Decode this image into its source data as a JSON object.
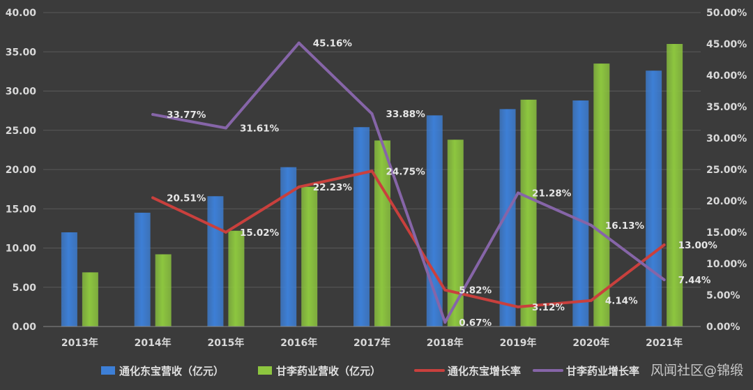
{
  "chart_data": {
    "type": "bar",
    "categories": [
      "2013年",
      "2014年",
      "2015年",
      "2016年",
      "2017年",
      "2018年",
      "2019年",
      "2020年",
      "2021年"
    ],
    "y_left": {
      "min": 0,
      "max": 40,
      "ticks": [
        "0.00",
        "5.00",
        "10.00",
        "15.00",
        "20.00",
        "25.00",
        "30.00",
        "35.00",
        "40.00"
      ]
    },
    "y_right": {
      "min": 0,
      "max": 50,
      "ticks": [
        "0.00%",
        "5.00%",
        "10.00%",
        "15.00%",
        "20.00%",
        "25.00%",
        "30.00%",
        "35.00%",
        "40.00%",
        "45.00%",
        "50.00%"
      ]
    },
    "grid": true,
    "legend_position": "bottom",
    "bar_series": [
      {
        "name": "通化东宝营收（亿元）",
        "color": "#3d7fd6",
        "values": [
          12.0,
          14.5,
          16.6,
          20.3,
          25.4,
          26.9,
          27.7,
          28.8,
          32.6
        ]
      },
      {
        "name": "甘李药业营收（亿元）",
        "color": "#8dc63f",
        "values": [
          6.9,
          9.2,
          12.2,
          17.8,
          23.7,
          23.8,
          28.9,
          33.5,
          36.0
        ]
      }
    ],
    "line_series": [
      {
        "name": "通化东宝增长率",
        "color": "#c9403d",
        "values": [
          null,
          20.51,
          15.02,
          22.23,
          24.75,
          5.82,
          3.12,
          4.14,
          13.0
        ],
        "labels": [
          null,
          "20.51%",
          "15.02%",
          "22.23%",
          "24.75%",
          "5.82%",
          "3.12%",
          "4.14%",
          "13.00%"
        ]
      },
      {
        "name": "甘李药业增长率",
        "color": "#8665a8",
        "values": [
          null,
          33.77,
          31.61,
          45.16,
          33.88,
          0.67,
          21.28,
          16.13,
          7.44
        ],
        "labels": [
          null,
          "33.77%",
          "31.61%",
          "45.16%",
          "33.88%",
          "0.67%",
          "21.28%",
          "16.13%",
          "7.44%"
        ]
      }
    ]
  },
  "watermark": "风闻社区@锦缎"
}
